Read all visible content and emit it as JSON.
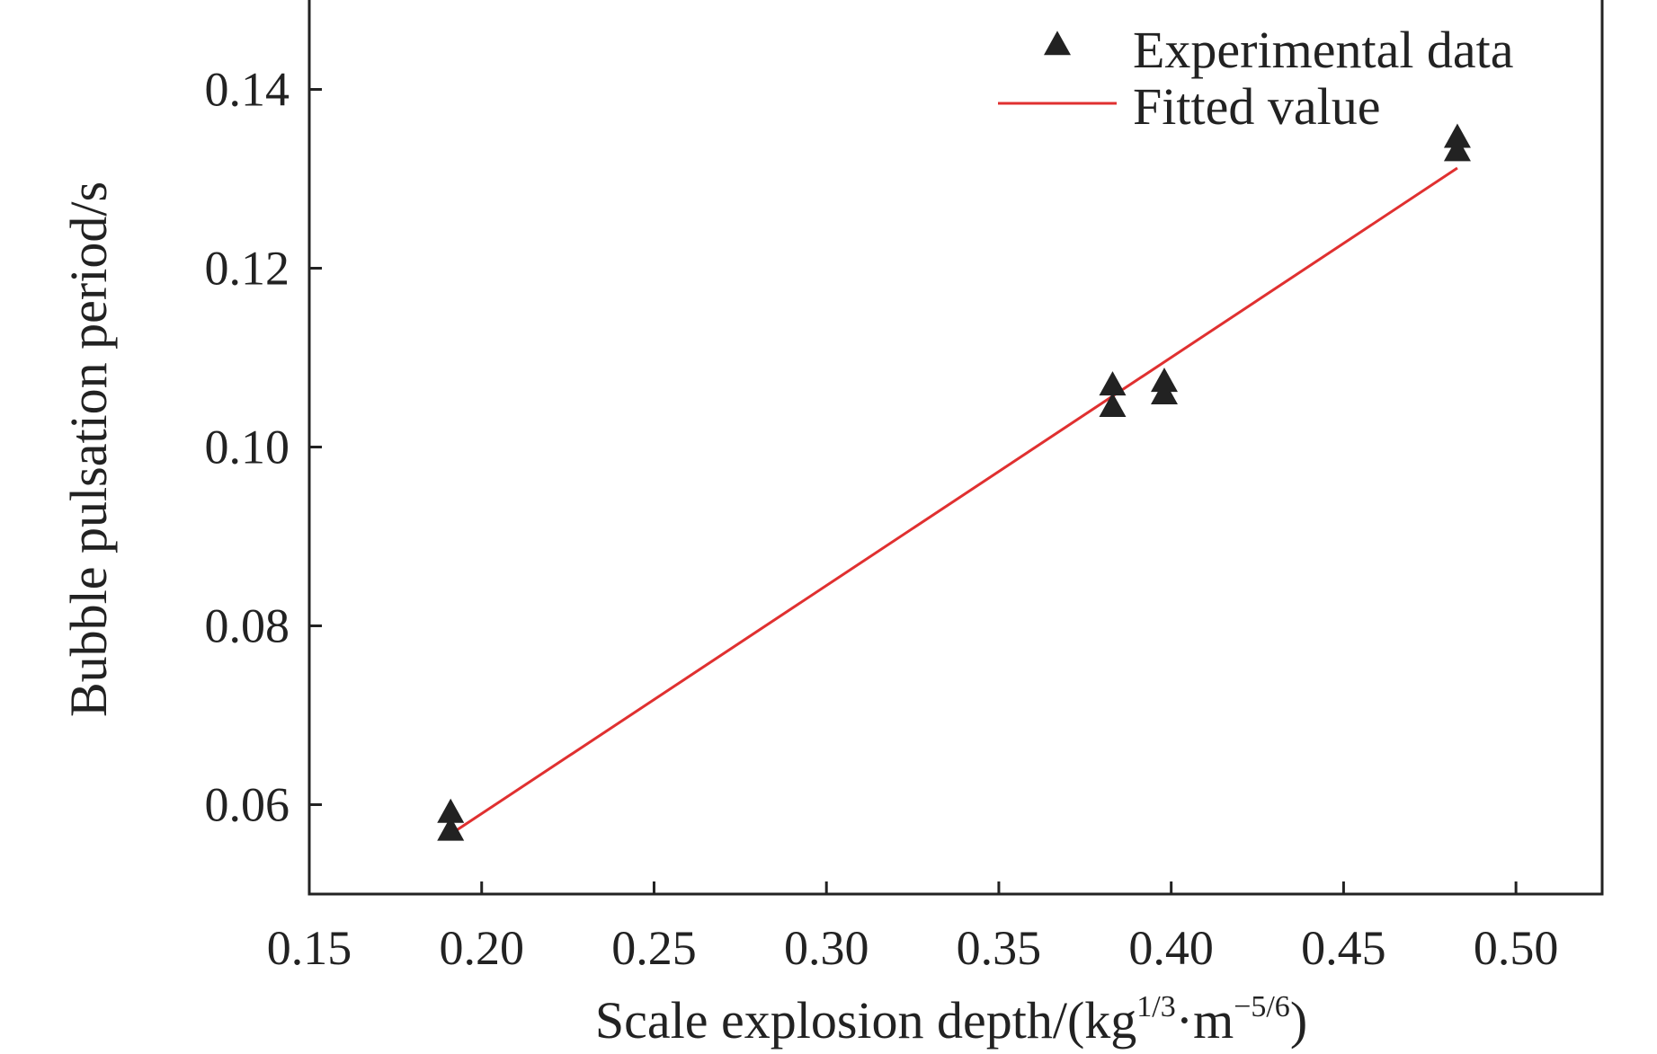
{
  "chart_data": {
    "type": "scatter",
    "xlabel": "Scale explosion depth/(kg",
    "xlabel_unit_exp1": "1/3",
    "xlabel_unit_mid": "·m",
    "xlabel_unit_exp2": "−5/6",
    "xlabel_unit_end": ")",
    "ylabel": "Bubble pulsation period/s",
    "xlim": [
      0.15,
      0.525
    ],
    "ylim": [
      0.05,
      0.15
    ],
    "xticks": [
      0.15,
      0.2,
      0.25,
      0.3,
      0.35,
      0.4,
      0.45,
      0.5
    ],
    "xtick_labels": [
      "0.15",
      "0.20",
      "0.25",
      "0.30",
      "0.35",
      "0.40",
      "0.45",
      "0.50"
    ],
    "yticks": [
      0.06,
      0.08,
      0.1,
      0.12,
      0.14
    ],
    "ytick_labels": [
      "0.06",
      "0.08",
      "0.10",
      "0.12",
      "0.14"
    ],
    "grid": false,
    "legend_position": "top-right",
    "series": [
      {
        "name": "Experimental data",
        "kind": "scatter",
        "marker": "triangle",
        "color": "#222222",
        "points": [
          {
            "x": 0.191,
            "y": 0.059
          },
          {
            "x": 0.191,
            "y": 0.057
          },
          {
            "x": 0.383,
            "y": 0.1068
          },
          {
            "x": 0.383,
            "y": 0.1044
          },
          {
            "x": 0.398,
            "y": 0.1072
          },
          {
            "x": 0.398,
            "y": 0.1058
          },
          {
            "x": 0.483,
            "y": 0.1345
          },
          {
            "x": 0.483,
            "y": 0.133
          }
        ]
      },
      {
        "name": "Fitted value",
        "kind": "line",
        "color": "#e03030",
        "points": [
          {
            "x": 0.191,
            "y": 0.0567
          },
          {
            "x": 0.483,
            "y": 0.1312
          }
        ]
      }
    ]
  }
}
